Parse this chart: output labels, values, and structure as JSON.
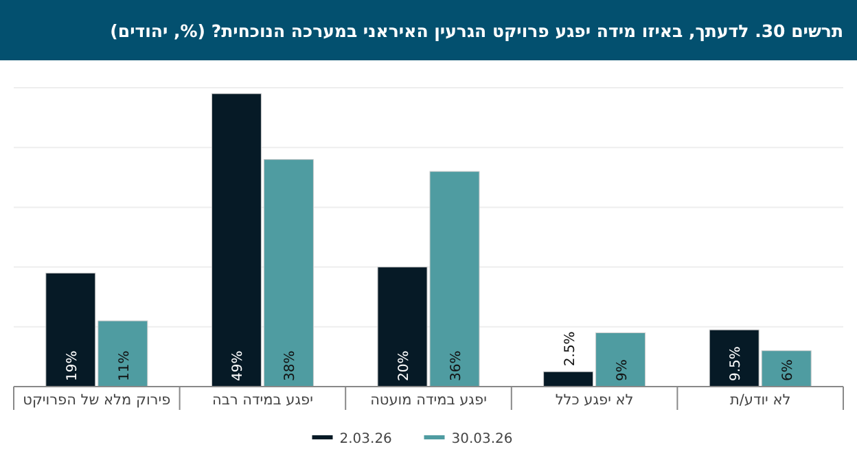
{
  "chart_data": {
    "type": "bar",
    "title": "תרשים 30. לדעתך, באיזו מידה יפגע פרויקט הגרעין האיראני במערכה הנוכחית? (%, יהודים)",
    "categories": [
      "פירוק מלא של הפרויקט",
      "יפגע במידה רבה",
      "יפגע במידה מועטה",
      "לא יפגע כלל",
      "לא יודע/ת"
    ],
    "series": [
      {
        "name": "2.03.26",
        "color": "#061a26",
        "values": [
          19,
          49,
          20,
          2.5,
          9.5
        ],
        "value_labels": [
          "19%",
          "49%",
          "20%",
          "2.5%",
          "9.5%"
        ]
      },
      {
        "name": "30.03.26",
        "color": "#4f9ca1",
        "values": [
          11,
          38,
          36,
          9,
          6
        ],
        "value_labels": [
          "11%",
          "38%",
          "36%",
          "9%",
          "6%"
        ]
      }
    ],
    "ylim": [
      0,
      50
    ],
    "yticks": [
      {
        "value": 0,
        "label": null
      },
      {
        "value": 10,
        "label": null
      },
      {
        "value": 20,
        "label": null
      },
      {
        "value": 30,
        "label": null
      },
      {
        "value": 40,
        "label": null
      },
      {
        "value": 50,
        "label": null
      }
    ],
    "tick_labels": "x",
    "grid": "y",
    "legend": "bottom"
  }
}
